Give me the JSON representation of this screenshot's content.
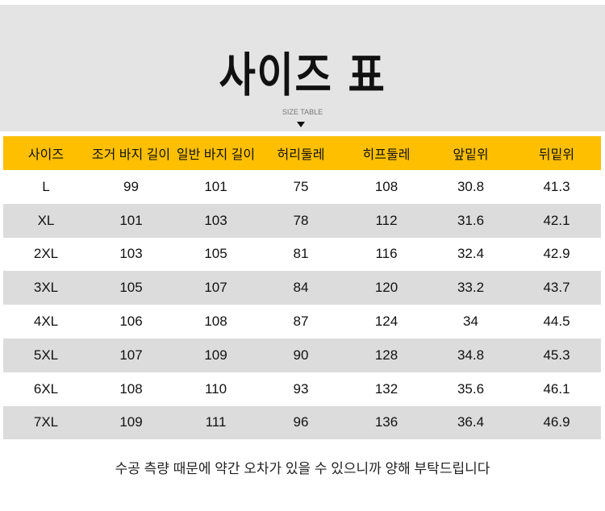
{
  "banner": {
    "title": "사이즈 표",
    "subtitle": "SIZE TABLE",
    "arrow_icon": "triangle-down-icon"
  },
  "colors": {
    "header_bg": "#fdbf00",
    "banner_bg": "#e4e4e4",
    "alt_row_bg": "#dcdcdc"
  },
  "table": {
    "headers": [
      "사이즈",
      "조거 바지 길이",
      "일반 바지 길이",
      "허리둘레",
      "히프둘레",
      "앞밑위",
      "뒤밑위"
    ],
    "rows": [
      [
        "L",
        "99",
        "101",
        "75",
        "108",
        "30.8",
        "41.3"
      ],
      [
        "XL",
        "101",
        "103",
        "78",
        "112",
        "31.6",
        "42.1"
      ],
      [
        "2XL",
        "103",
        "105",
        "81",
        "116",
        "32.4",
        "42.9"
      ],
      [
        "3XL",
        "105",
        "107",
        "84",
        "120",
        "33.2",
        "43.7"
      ],
      [
        "4XL",
        "106",
        "108",
        "87",
        "124",
        "34",
        "44.5"
      ],
      [
        "5XL",
        "107",
        "109",
        "90",
        "128",
        "34.8",
        "45.3"
      ],
      [
        "6XL",
        "108",
        "110",
        "93",
        "132",
        "35.6",
        "46.1"
      ],
      [
        "7XL",
        "109",
        "111",
        "96",
        "136",
        "36.4",
        "46.9"
      ]
    ]
  },
  "note": "수공 측량 때문에 약간 오차가 있을 수 있으니까 양해 부탁드립니다"
}
